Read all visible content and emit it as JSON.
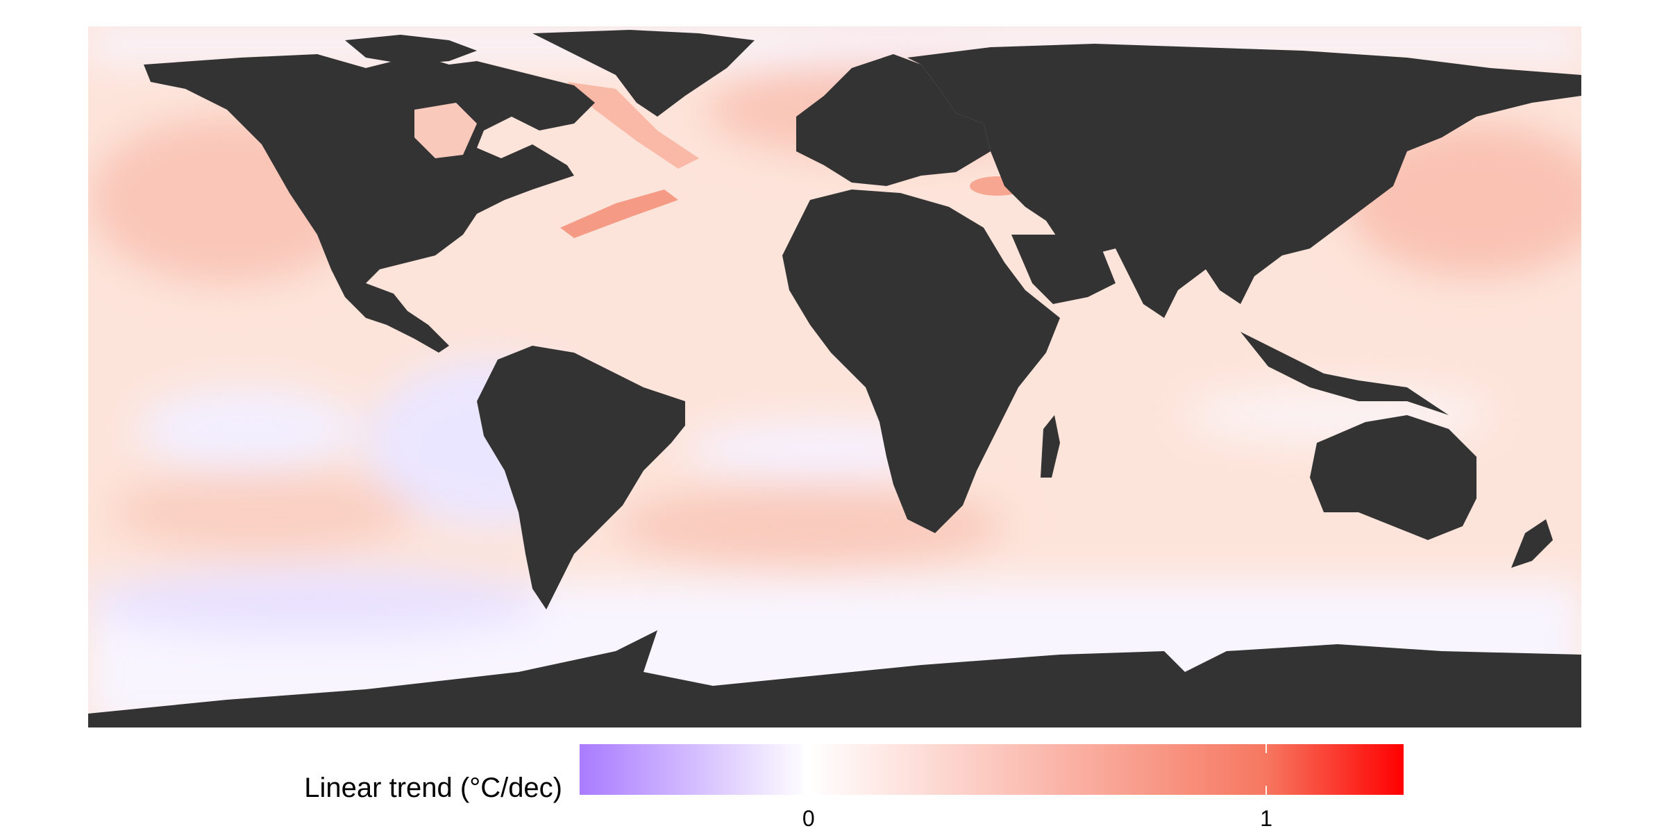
{
  "map": {
    "colors": {
      "land": "#333333",
      "ocean_base": "#fde4da",
      "cool_anomaly": "#ebe6ff",
      "warm_anomaly": "#f7b5a5",
      "polar_ocean": "#f8f5ff"
    }
  },
  "legend": {
    "title": "Linear trend (°C/dec)",
    "range": [
      -0.5,
      1.3
    ],
    "ticks": [
      {
        "value": 0,
        "label": "0"
      },
      {
        "value": 1,
        "label": "1"
      }
    ],
    "color_stops": [
      {
        "value": -0.5,
        "color": "#a97bff"
      },
      {
        "value": 0,
        "color": "#ffffff"
      },
      {
        "value": 1,
        "color": "#f67760"
      },
      {
        "value": 1.3,
        "color": "#ff0000"
      }
    ]
  }
}
